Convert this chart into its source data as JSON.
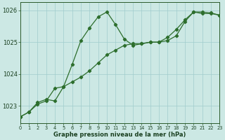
{
  "line1_x": [
    0,
    1,
    2,
    3,
    4,
    5,
    6,
    7,
    8,
    9,
    10,
    11,
    12,
    13,
    14,
    15,
    16,
    17,
    18,
    19,
    20,
    21,
    22,
    23
  ],
  "line1_y": [
    1022.65,
    1022.8,
    1023.1,
    1023.2,
    1023.15,
    1023.6,
    1024.3,
    1025.05,
    1025.45,
    1025.8,
    1025.95,
    1025.55,
    1025.1,
    1024.9,
    1024.95,
    1025.0,
    1025.0,
    1025.05,
    1025.2,
    1025.65,
    1025.95,
    1025.95,
    1025.92,
    1025.85
  ],
  "line2_x": [
    0,
    1,
    2,
    3,
    4,
    5,
    6,
    7,
    8,
    9,
    10,
    11,
    12,
    13,
    14,
    15,
    16,
    17,
    18,
    19,
    20,
    21,
    22,
    23
  ],
  "line2_y": [
    1022.65,
    1022.8,
    1023.05,
    1023.15,
    1023.55,
    1023.6,
    1023.75,
    1023.9,
    1024.1,
    1024.35,
    1024.6,
    1024.75,
    1024.9,
    1024.95,
    1024.95,
    1025.0,
    1025.0,
    1025.15,
    1025.4,
    1025.7,
    1025.95,
    1025.9,
    1025.9,
    1025.85
  ],
  "line_color": "#2d6e2d",
  "bg_color": "#cce8e4",
  "grid_color": "#a0cccc",
  "xlabel": "Graphe pression niveau de la mer (hPa)",
  "yticks": [
    1023,
    1024,
    1025,
    1026
  ],
  "xticks": [
    0,
    1,
    2,
    3,
    4,
    5,
    6,
    7,
    8,
    9,
    10,
    11,
    12,
    13,
    14,
    15,
    16,
    17,
    18,
    19,
    20,
    21,
    22,
    23
  ],
  "xlim": [
    0,
    23
  ],
  "ylim": [
    1022.45,
    1026.25
  ]
}
